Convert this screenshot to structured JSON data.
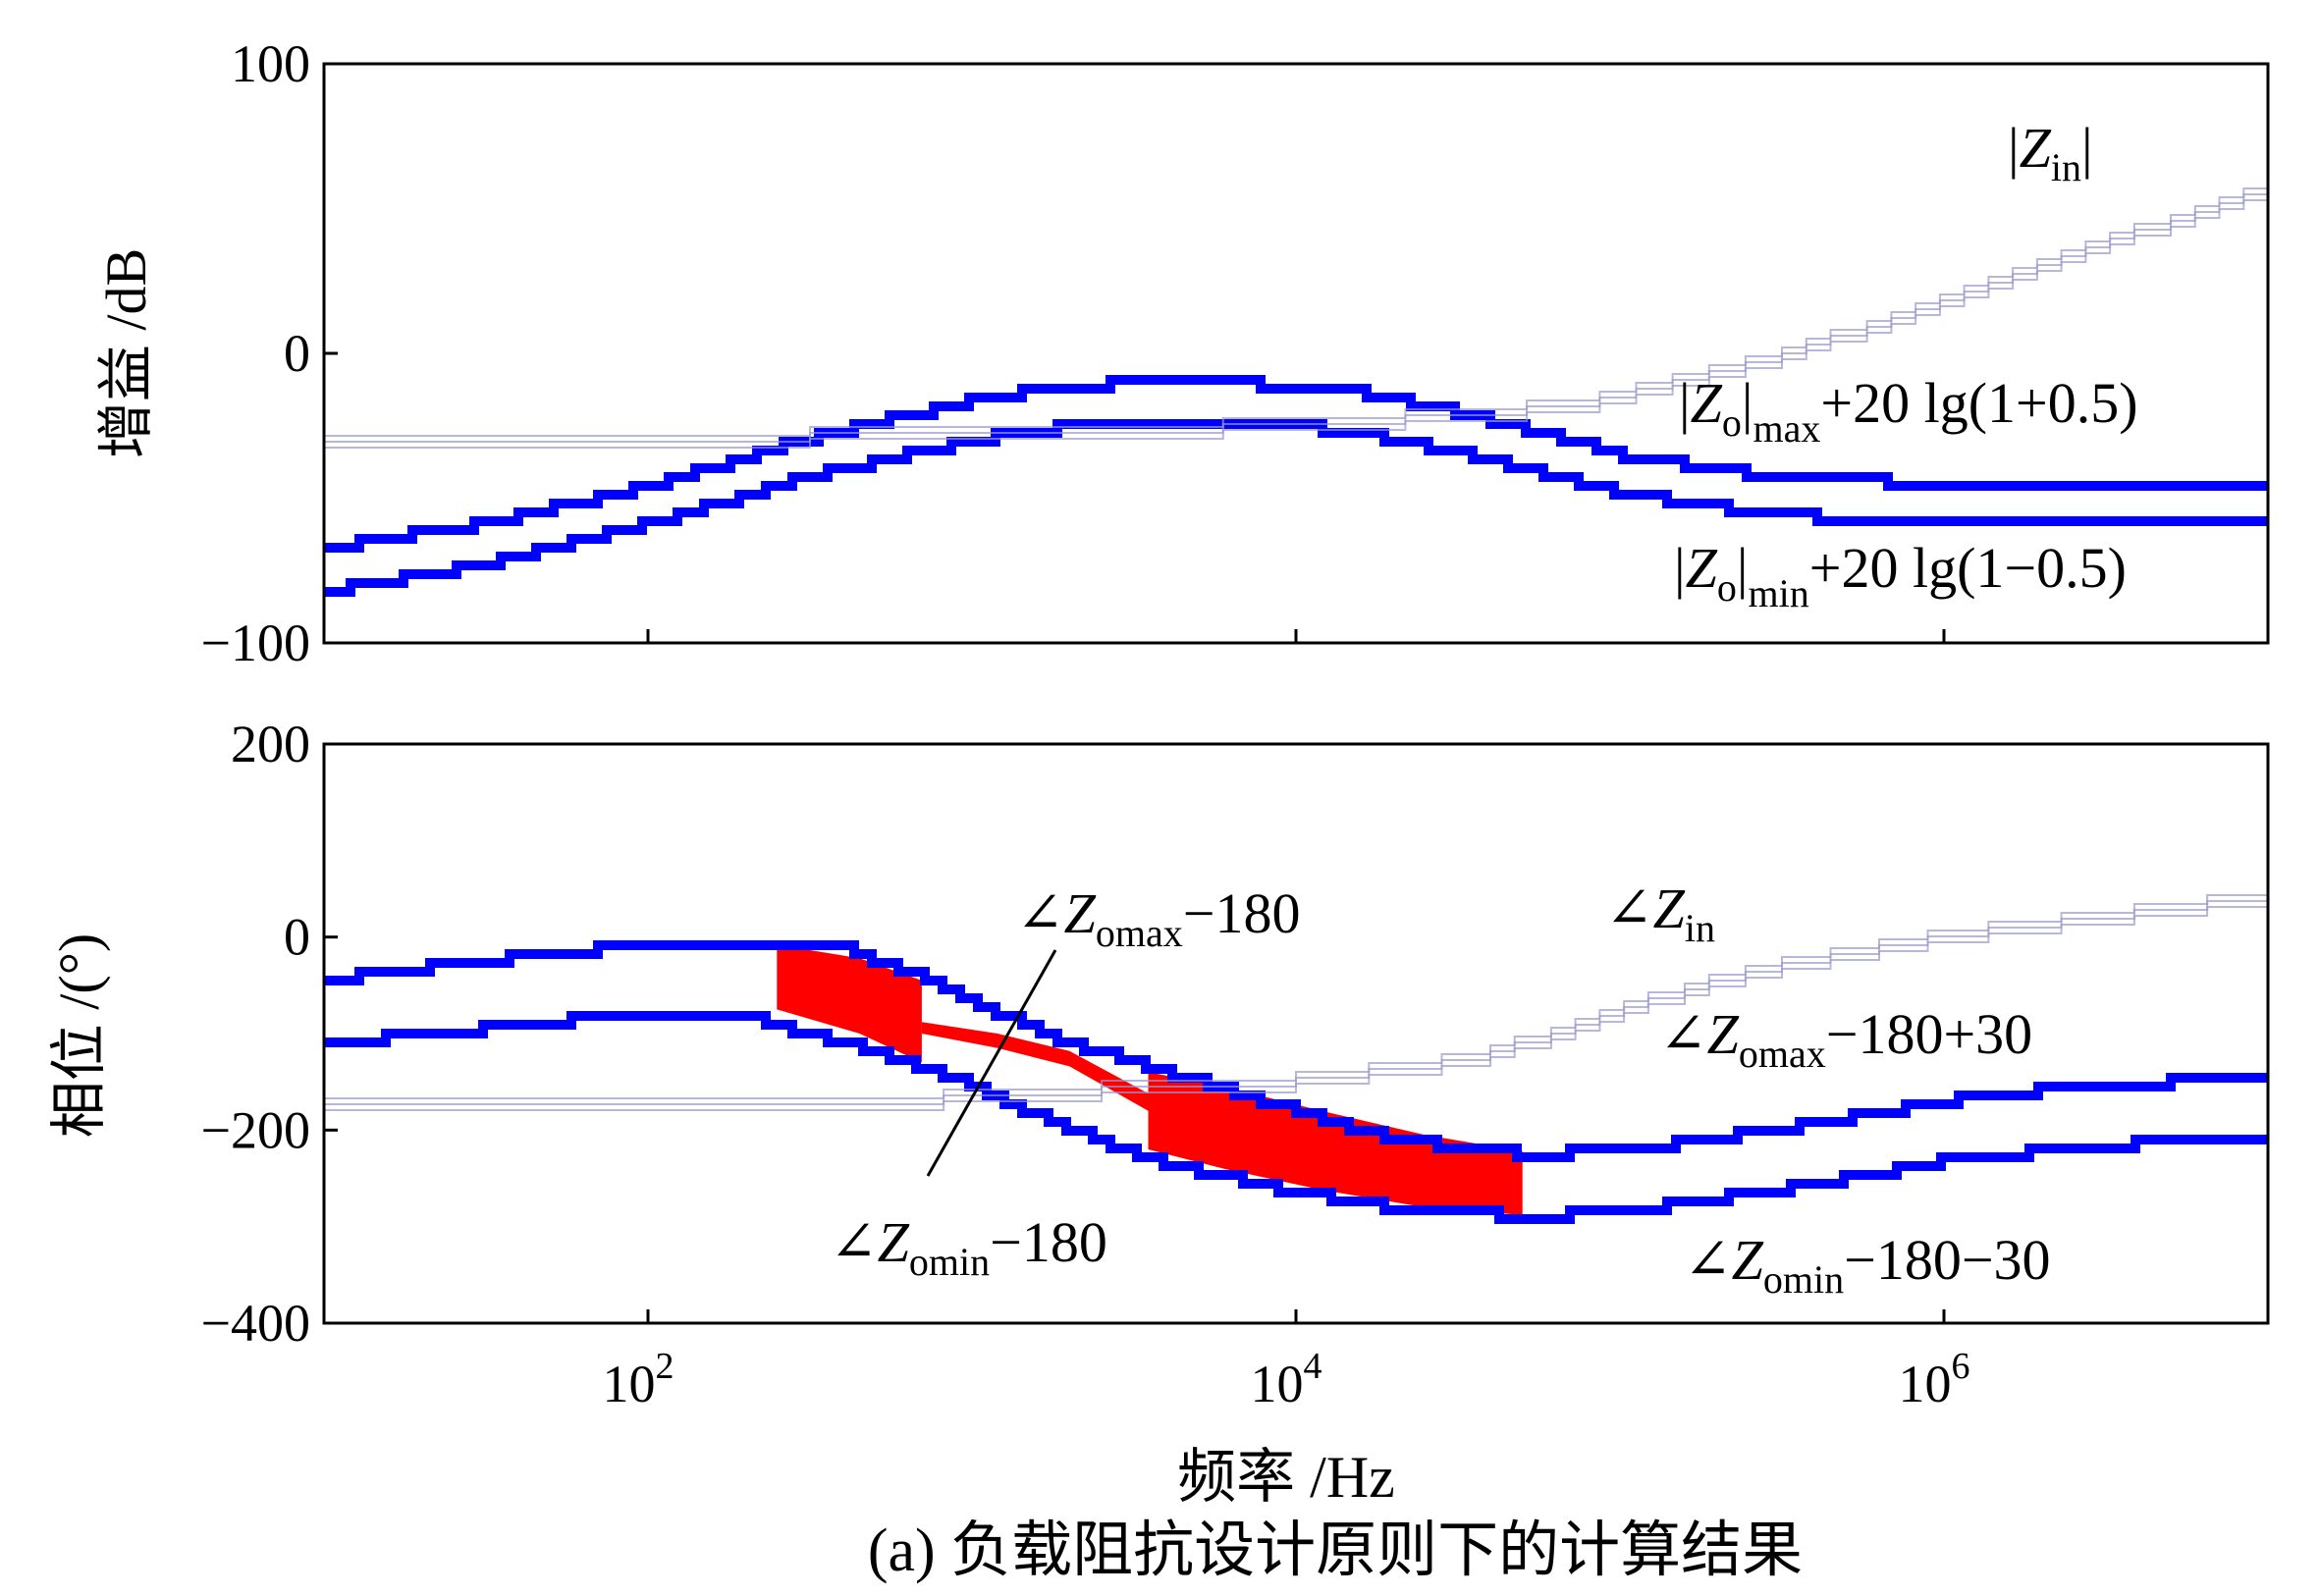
{
  "figure": {
    "caption": "(a) 负载阻抗设计原则下的计算结果",
    "xlabel": "频率 /Hz"
  },
  "chart_data": [
    {
      "type": "line",
      "panel": "magnitude",
      "ylabel": "增益 /dB",
      "xscale": "log",
      "xlim": [
        10,
        10000000
      ],
      "ylim": [
        -100,
        100
      ],
      "yticks": [
        -100,
        0,
        100
      ],
      "yticklabels": [
        "−100",
        "0",
        "100"
      ],
      "xticks": [
        100,
        10000,
        1000000
      ],
      "xticklabels": [],
      "grid": false,
      "series": [
        {
          "name": "|Zo|max+20 lg(1+0.5)",
          "color": "#0000ff",
          "x": [
            10,
            30,
            100,
            300,
            1000,
            1500,
            3000,
            6000,
            15000,
            40000,
            100000,
            300000,
            1000000,
            3000000,
            10000000
          ],
          "y": [
            -67,
            -59,
            -46,
            -30,
            -16,
            -13,
            -10,
            -10,
            -13,
            -23,
            -35,
            -43,
            -45,
            -45,
            -45
          ]
        },
        {
          "name": "|Zo|min+20 lg(1−0.5)",
          "color": "#0000ff",
          "x": [
            10,
            30,
            100,
            300,
            1000,
            1500,
            3000,
            6000,
            15000,
            40000,
            100000,
            300000,
            1000000,
            3000000,
            10000000
          ],
          "y": [
            -82,
            -73,
            -59,
            -43,
            -30,
            -27,
            -23,
            -23,
            -27,
            -37,
            -48,
            -56,
            -58,
            -58,
            -58
          ]
        },
        {
          "name": "|Zin|",
          "color": "#9999cc",
          "x": [
            10,
            300,
            1000,
            3000,
            10000,
            30000,
            60000,
            100000,
            300000,
            1000000,
            3000000,
            10000000
          ],
          "y": [
            -29,
            -29,
            -28,
            -27,
            -25,
            -22,
            -19,
            -15,
            -2,
            18,
            37,
            57
          ]
        }
      ],
      "annotations": [
        {
          "base": "Z",
          "sub": "in",
          "bars": true,
          "tail": ""
        },
        {
          "base": "Z",
          "sub": "o",
          "bars": true,
          "after": "max",
          "tail": "+20 lg(1+0.5)"
        },
        {
          "base": "Z",
          "sub": "o",
          "bars": true,
          "after": "min",
          "tail": "+20 lg(1−0.5)"
        }
      ]
    },
    {
      "type": "line",
      "panel": "phase",
      "ylabel": "相位 /(°)",
      "xscale": "log",
      "xlim": [
        10,
        10000000
      ],
      "ylim": [
        -400,
        200
      ],
      "yticks": [
        -400,
        -200,
        0,
        200
      ],
      "yticklabels": [
        "−400",
        "−200",
        "0",
        "200"
      ],
      "xticks": [
        100,
        10000,
        1000000
      ],
      "xticklabels": [
        "10^2",
        "10^4",
        "10^6"
      ],
      "grid": false,
      "series": [
        {
          "name": "∠Zomax−180+30",
          "color": "#0000ff",
          "x": [
            10,
            30,
            100,
            200,
            400,
            700,
            1000,
            2000,
            4000,
            10000,
            20000,
            50000,
            100000,
            300000,
            1000000,
            3000000,
            10000000
          ],
          "y": [
            -45,
            -25,
            -8,
            -5,
            -12,
            -40,
            -68,
            -110,
            -140,
            -180,
            -210,
            -225,
            -222,
            -200,
            -170,
            -152,
            -148
          ]
        },
        {
          "name": "∠Zomin−180−30",
          "color": "#0000ff",
          "x": [
            10,
            30,
            100,
            200,
            400,
            700,
            1000,
            2000,
            4000,
            10000,
            20000,
            50000,
            100000,
            300000,
            1000000,
            3000000,
            10000000
          ],
          "y": [
            -110,
            -95,
            -78,
            -82,
            -110,
            -135,
            -155,
            -200,
            -235,
            -265,
            -280,
            -290,
            -285,
            -262,
            -232,
            -215,
            -212
          ]
        },
        {
          "name": "∠Zin",
          "color": "#9999cc",
          "x": [
            10,
            700,
            1000,
            3000,
            10000,
            30000,
            60000,
            100000,
            300000,
            1000000,
            3000000,
            10000000
          ],
          "y": [
            -175,
            -170,
            -165,
            -158,
            -150,
            -130,
            -105,
            -75,
            -30,
            0,
            20,
            42
          ]
        }
      ],
      "highlight_regions": [
        {
          "color": "#ff0000",
          "x": [
            250,
            450,
            700
          ],
          "upper": [
            -8,
            -22,
            -45
          ],
          "lower": [
            -75,
            -100,
            -130
          ]
        },
        {
          "color": "#ff0000",
          "x": [
            700,
            1200,
            2000,
            3500
          ],
          "upper": [
            -88,
            -100,
            -118,
            -162
          ],
          "lower": [
            -100,
            -115,
            -134,
            -180
          ]
        },
        {
          "color": "#ff0000",
          "x": [
            3500,
            6000,
            12000,
            25000,
            50000
          ],
          "upper": [
            -140,
            -155,
            -180,
            -205,
            -222
          ],
          "lower": [
            -220,
            -240,
            -262,
            -280,
            -288
          ]
        }
      ],
      "annotations": [
        {
          "base": "Z",
          "sub": "omax",
          "tail": "−180"
        },
        {
          "base": "Z",
          "sub": "in",
          "tail": ""
        },
        {
          "base": "Z",
          "sub": "omax",
          "tail": "−180+30"
        },
        {
          "base": "Z",
          "sub": "omin",
          "tail": "−180"
        },
        {
          "base": "Z",
          "sub": "omin",
          "tail": "−180−30"
        }
      ]
    }
  ]
}
